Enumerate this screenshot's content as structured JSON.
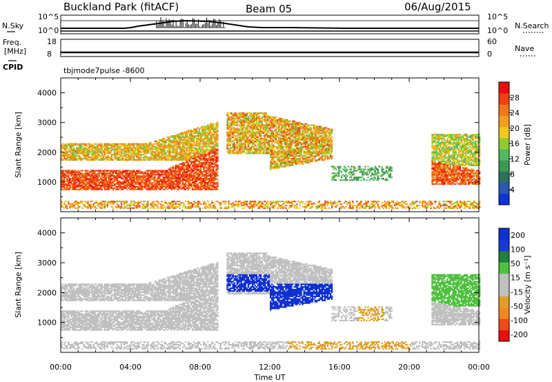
{
  "header": {
    "site": "Buckland Park (fitACF)",
    "beam": "Beam 05",
    "date": "06/Aug/2015"
  },
  "top_panels": {
    "nsky_label": "N.Sky",
    "nsky_ticks": [
      "10^5",
      "10^0"
    ],
    "nsearch_label": "N.Search",
    "nsearch_ticks": [
      "10^5",
      "10^0"
    ],
    "freq_label_1": "Freq.",
    "freq_label_2": "[MHz]",
    "freq_ticks": [
      "18",
      "8"
    ],
    "nave_label": "Nave",
    "nave_ticks": [
      "60",
      "0"
    ],
    "cpid_label": "CPID",
    "cpid_value": "tbjmode7pulse -8600"
  },
  "colors": {
    "power_scale": [
      "#1030d8",
      "#2858b0",
      "#2e7060",
      "#3c9850",
      "#50b860",
      "#90cc30",
      "#f0c820",
      "#f0a020",
      "#f07818",
      "#f04010",
      "#e81010"
    ],
    "velocity_scale": [
      "#e81010",
      "#f04818",
      "#f08820",
      "#e0a028",
      "#c0c0c0",
      "#c0c0c0",
      "#50c040",
      "#208040",
      "#1838d8",
      "#1030d0"
    ]
  },
  "chart_data": [
    {
      "type": "heatmap",
      "name": "power",
      "ylabel": "Slant Range [km]",
      "ylim": [
        0,
        4500
      ],
      "y_ticks": [
        "1000",
        "2000",
        "3000",
        "4000"
      ],
      "xlim": [
        0,
        24
      ],
      "x_ticks": [
        "00:00",
        "04:00",
        "08:00",
        "12:00",
        "16:00",
        "20:00",
        "00:00"
      ],
      "colorbar": {
        "label": "Power [dB]",
        "range": [
          0,
          32
        ],
        "ticks": [
          "4",
          "8",
          "12",
          "16",
          "20",
          "24",
          "28"
        ]
      }
    },
    {
      "type": "heatmap",
      "name": "velocity",
      "ylabel": "Slant Range [km]",
      "ylim": [
        0,
        4500
      ],
      "y_ticks": [
        "1000",
        "2000",
        "3000",
        "4000"
      ],
      "xlim": [
        0,
        24
      ],
      "x_ticks": [
        "00:00",
        "04:00",
        "08:00",
        "12:00",
        "16:00",
        "20:00",
        "00:00"
      ],
      "xlabel": "Time UT",
      "colorbar": {
        "label": "Velocity [m s⁻¹]",
        "ticks": [
          "200",
          "100",
          "50",
          "15",
          "-15",
          "-50",
          "-100",
          "-200"
        ]
      }
    }
  ]
}
